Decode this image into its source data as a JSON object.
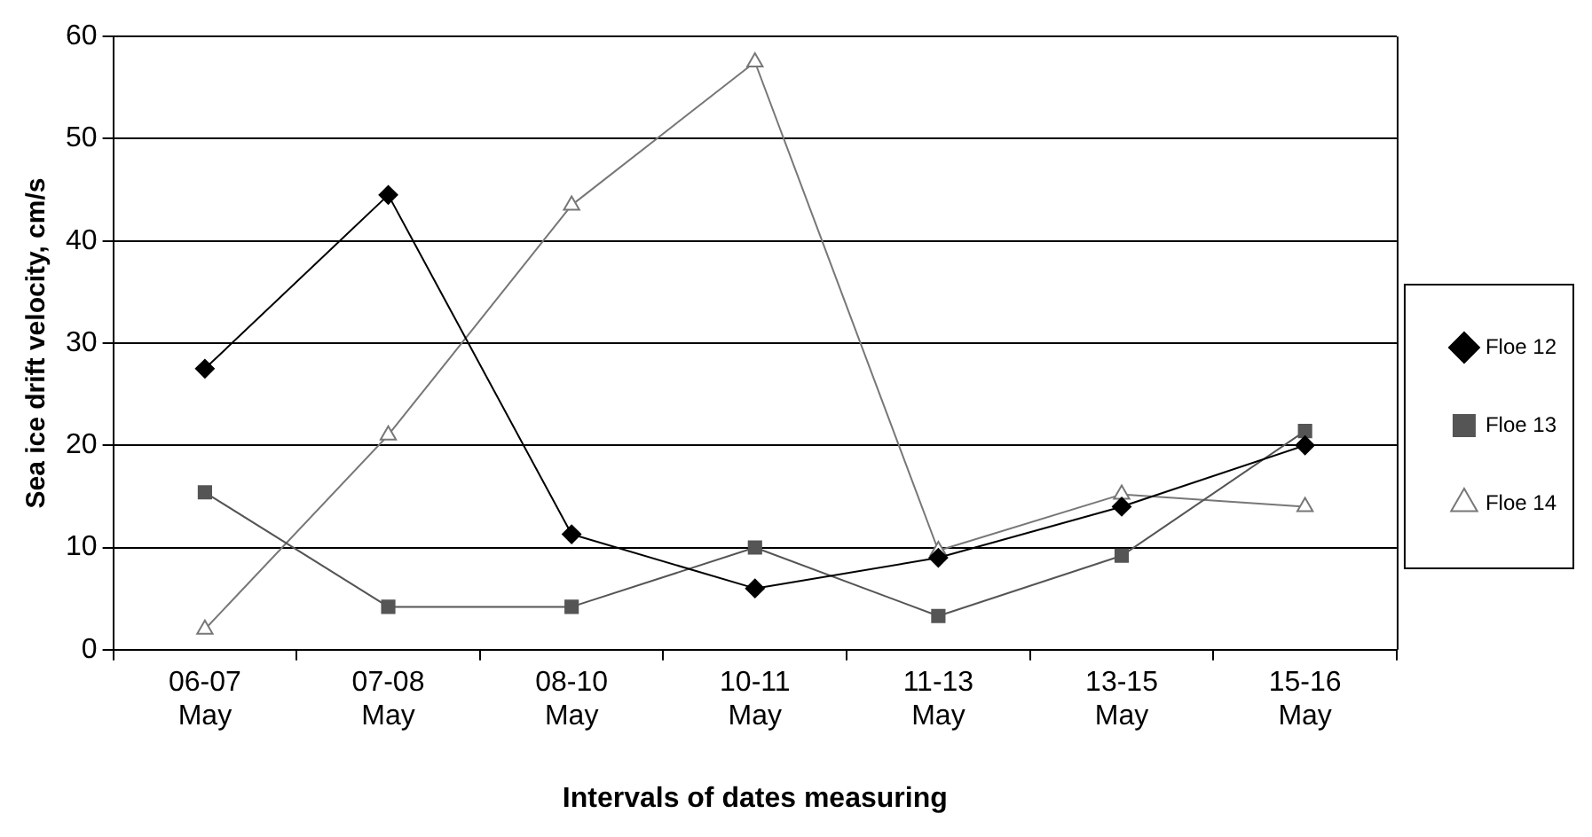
{
  "chart_data": {
    "type": "line",
    "xlabel": "Intervals of dates measuring",
    "ylabel": "Sea ice drift velocity, cm/s",
    "categories": [
      "06-07 May",
      "07-08 May",
      "08-10 May",
      "10-11 May",
      "11-13 May",
      "13-15 May",
      "15-16 May"
    ],
    "series": [
      {
        "name": "Floe 12",
        "color": "#000000",
        "marker": "diamond",
        "values": [
          27.5,
          44.5,
          11.3,
          6,
          9,
          14,
          20
        ]
      },
      {
        "name": "Floe 13",
        "color": "#555555",
        "marker": "square",
        "values": [
          15.4,
          4.2,
          4.2,
          10,
          3.3,
          9.2,
          21.4
        ]
      },
      {
        "name": "Floe 14",
        "color": "#777777",
        "marker": "triangle",
        "values": [
          2,
          21,
          43.5,
          57.5,
          9.7,
          15.2,
          14
        ]
      }
    ],
    "ylim": [
      0,
      60
    ],
    "yticks": [
      0,
      10,
      20,
      30,
      40,
      50,
      60
    ],
    "grid": "y",
    "legend": "right",
    "line_style": "solid"
  }
}
